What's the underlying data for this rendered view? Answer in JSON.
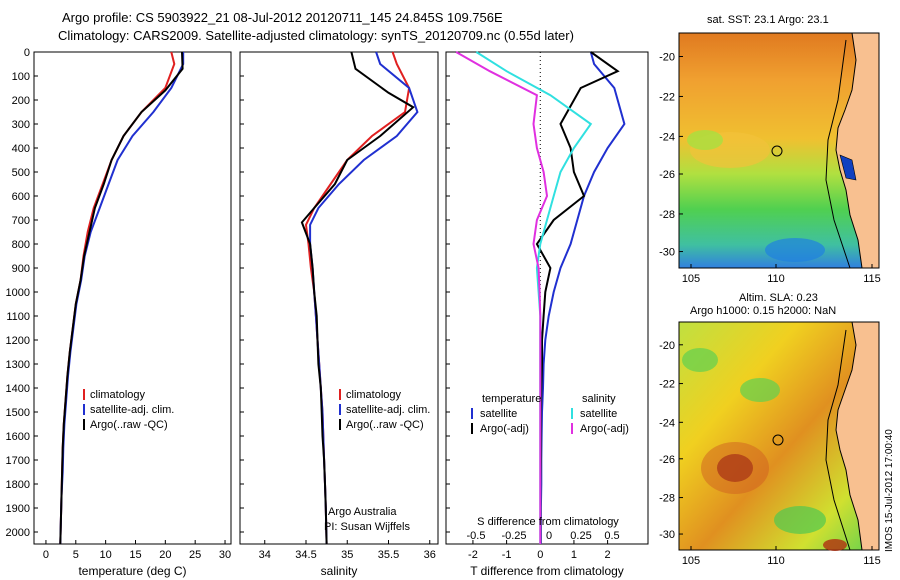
{
  "titles": {
    "line1": "Argo profile: CS 5903922_21 08-Jul-2012 20120711_145 24.845S 109.756E",
    "line2": "Climatology: CARS2009. Satellite-adjusted climatology: synTS_20120709.nc (0.55d later)"
  },
  "stamp": "IMOS 15-Jul-2012 17:00:40",
  "colors": {
    "climatology": "#e02020",
    "satellite": "#2030d0",
    "argo": "#000000",
    "sat_sal": "#30e0e0",
    "argo_sal": "#e030e0"
  },
  "chart_data": [
    {
      "type": "line",
      "xlabel": "temperature (deg C)",
      "ylabel": "",
      "xlim": [
        -2,
        31
      ],
      "ylim": [
        2050,
        0
      ],
      "xticks": [
        0,
        5,
        10,
        15,
        20,
        25,
        30
      ],
      "yticks": [
        0,
        100,
        200,
        300,
        400,
        500,
        600,
        700,
        800,
        900,
        1000,
        1100,
        1200,
        1300,
        1400,
        1500,
        1600,
        1700,
        1800,
        1900,
        2000
      ],
      "legend": {
        "position": "lower-left",
        "entries": [
          "climatology",
          "satellite-adj. clim.",
          "Argo(..raw -QC)"
        ]
      },
      "series": [
        {
          "name": "climatology",
          "color": "#e02020",
          "x": [
            21,
            21.5,
            20,
            16,
            13,
            11,
            9.5,
            8,
            7,
            6.3,
            5.8,
            5,
            4.5,
            4,
            3.6,
            3.3,
            3,
            2.8,
            2.7,
            2.6,
            2.5,
            2.4
          ],
          "y": [
            0,
            50,
            150,
            250,
            350,
            450,
            550,
            650,
            750,
            850,
            950,
            1050,
            1150,
            1250,
            1350,
            1450,
            1550,
            1650,
            1750,
            1850,
            1950,
            2050
          ]
        },
        {
          "name": "satellite-adj. clim.",
          "color": "#2030d0",
          "x": [
            23,
            23,
            21,
            18,
            14.5,
            12,
            10.5,
            9,
            7.5,
            6.5,
            5.9,
            5.1,
            4.6,
            4.1,
            3.7,
            3.4,
            3.1,
            2.9,
            2.8,
            2.6,
            2.5,
            2.4
          ],
          "y": [
            0,
            50,
            150,
            250,
            350,
            450,
            550,
            650,
            750,
            850,
            950,
            1050,
            1150,
            1250,
            1350,
            1450,
            1550,
            1650,
            1750,
            1850,
            1950,
            2050
          ]
        },
        {
          "name": "Argo(..raw -QC)",
          "color": "#000000",
          "x": [
            22.8,
            22.9,
            20,
            16,
            13,
            11,
            9.7,
            8.2,
            7.3,
            6.4,
            5.8,
            5,
            4.5,
            4,
            3.6,
            3.3,
            3,
            2.8,
            2.7,
            2.6,
            2.5,
            2.4
          ],
          "y": [
            0,
            70,
            160,
            250,
            350,
            450,
            550,
            650,
            750,
            850,
            950,
            1050,
            1150,
            1250,
            1350,
            1450,
            1550,
            1650,
            1750,
            1850,
            1950,
            2050
          ]
        }
      ]
    },
    {
      "type": "line",
      "xlabel": "salinity",
      "ylabel": "",
      "xlim": [
        33.7,
        36.1
      ],
      "ylim": [
        2050,
        0
      ],
      "xticks": [
        34,
        34.5,
        35,
        35.5,
        36
      ],
      "xticklabels": [
        "34",
        "34.5",
        "35",
        "35.5",
        "36"
      ],
      "legend": {
        "position": "lower-right",
        "entries": [
          "climatology",
          "satellite-adj. clim.",
          "Argo(..raw -QC)"
        ]
      },
      "annotation": [
        "Argo Australia",
        "PI: Susan Wijffels"
      ],
      "series": [
        {
          "name": "climatology",
          "color": "#e02020",
          "x": [
            35.55,
            35.6,
            35.75,
            35.7,
            35.3,
            35,
            34.8,
            34.6,
            34.5,
            34.53,
            34.56,
            34.6,
            34.62,
            34.64,
            34.66,
            34.68,
            34.7,
            34.71,
            34.72,
            34.73,
            34.74,
            34.75
          ],
          "y": [
            0,
            50,
            150,
            250,
            350,
            450,
            550,
            650,
            720,
            800,
            900,
            1000,
            1100,
            1200,
            1300,
            1400,
            1500,
            1600,
            1700,
            1800,
            1900,
            2050
          ]
        },
        {
          "name": "satellite-adj. clim.",
          "color": "#2030d0",
          "x": [
            35.35,
            35.4,
            35.75,
            35.85,
            35.6,
            35.2,
            34.9,
            34.65,
            34.55,
            34.55,
            34.58,
            34.6,
            34.62,
            34.64,
            34.66,
            34.68,
            34.7,
            34.71,
            34.72,
            34.73,
            34.74,
            34.75
          ],
          "y": [
            0,
            50,
            150,
            250,
            350,
            450,
            550,
            650,
            720,
            800,
            900,
            1000,
            1100,
            1200,
            1300,
            1400,
            1500,
            1600,
            1700,
            1800,
            1900,
            2050
          ]
        },
        {
          "name": "Argo(..raw -QC)",
          "color": "#000000",
          "x": [
            35.05,
            35.1,
            35.5,
            35.8,
            35.4,
            35,
            34.85,
            34.6,
            34.45,
            34.55,
            34.58,
            34.6,
            34.63,
            34.64,
            34.65,
            34.68,
            34.69,
            34.7,
            34.72,
            34.73,
            34.74,
            34.75
          ],
          "y": [
            0,
            70,
            170,
            230,
            350,
            450,
            550,
            650,
            710,
            800,
            900,
            1000,
            1100,
            1200,
            1300,
            1400,
            1500,
            1600,
            1700,
            1800,
            1900,
            2050
          ]
        }
      ]
    },
    {
      "type": "line",
      "xlabel": "T difference from climatology",
      "ylabel": "",
      "xlim": [
        -2.8,
        3.2
      ],
      "ylim": [
        2050,
        0
      ],
      "xticks": [
        -2,
        -1,
        0,
        1,
        2
      ],
      "top_axis": {
        "label": "S difference from climatology",
        "ticks": [
          "-0.5",
          "-0.25",
          "0",
          "0.25",
          "0.5"
        ]
      },
      "legend": {
        "position": "lower",
        "entries": [
          "temperature",
          "satellite",
          "Argo(-adj)",
          "salinity",
          "satellite",
          "Argo(-adj)"
        ]
      },
      "series": [
        {
          "name": "temperature satellite",
          "color": "#2030d0",
          "x": [
            1.5,
            1.6,
            2.2,
            2.5,
            2.0,
            1.6,
            1.3,
            1.1,
            0.9,
            0.6,
            0.4,
            0.25,
            0.15,
            0.1,
            0.08,
            0.05,
            0.04,
            0.03,
            0.03,
            0.02,
            0.02
          ],
          "y": [
            0,
            50,
            150,
            300,
            400,
            500,
            600,
            700,
            800,
            900,
            1000,
            1100,
            1200,
            1300,
            1400,
            1500,
            1600,
            1700,
            1800,
            1900,
            2050
          ]
        },
        {
          "name": "temperature Argo(-adj)",
          "color": "#000000",
          "x": [
            1.5,
            2.3,
            1.2,
            0.6,
            0.9,
            1.0,
            1.3,
            0.4,
            -0.1,
            0.3,
            0.15,
            0.1,
            0.05,
            0.05,
            0.03,
            0.02,
            0.02,
            0.02,
            0.01,
            0.01,
            0.01
          ],
          "y": [
            0,
            80,
            150,
            300,
            400,
            500,
            600,
            700,
            800,
            900,
            1000,
            1100,
            1200,
            1300,
            1400,
            1500,
            1600,
            1700,
            1800,
            1900,
            2050
          ]
        },
        {
          "name": "salinity satellite",
          "color": "#30e0e0",
          "x": [
            -1.9,
            -1.0,
            0.3,
            1.5,
            1.0,
            0.6,
            0.4,
            0.2,
            0.0,
            -0.1,
            -0.05,
            0,
            0,
            0,
            0,
            0,
            0,
            0,
            0,
            0,
            0
          ],
          "y": [
            0,
            80,
            180,
            300,
            400,
            500,
            600,
            700,
            800,
            900,
            1000,
            1100,
            1200,
            1300,
            1400,
            1500,
            1600,
            1700,
            1800,
            1900,
            2050
          ]
        },
        {
          "name": "salinity Argo(-adj)",
          "color": "#e030e0",
          "x": [
            -2.5,
            -1.5,
            -0.1,
            -0.2,
            -0.1,
            0.1,
            0.2,
            -0.1,
            -0.2,
            -0.05,
            -0.02,
            0,
            0,
            0,
            0,
            0,
            0,
            0,
            0,
            0,
            0
          ],
          "y": [
            0,
            80,
            180,
            300,
            400,
            500,
            600,
            700,
            800,
            900,
            1000,
            1100,
            1200,
            1300,
            1400,
            1500,
            1600,
            1700,
            1800,
            1900,
            2050
          ]
        }
      ]
    },
    {
      "type": "heatmap",
      "title": "sat. SST: 23.1  Argo: 23.1",
      "xticks": [
        "105",
        "110",
        "115"
      ],
      "yticks": [
        "-20",
        "-22",
        "-24",
        "-26",
        "-28",
        "-30"
      ],
      "marker": {
        "lon": 109.756,
        "lat": -24.845
      }
    },
    {
      "type": "heatmap",
      "title_line1": "Altim. SLA: 0.23",
      "title_line2": "Argo h1000: 0.15 h2000: NaN",
      "xticks": [
        "105",
        "110",
        "115"
      ],
      "yticks": [
        "-20",
        "-22",
        "-24",
        "-26",
        "-28",
        "-30"
      ],
      "marker": {
        "lon": 109.756,
        "lat": -24.845
      }
    }
  ]
}
